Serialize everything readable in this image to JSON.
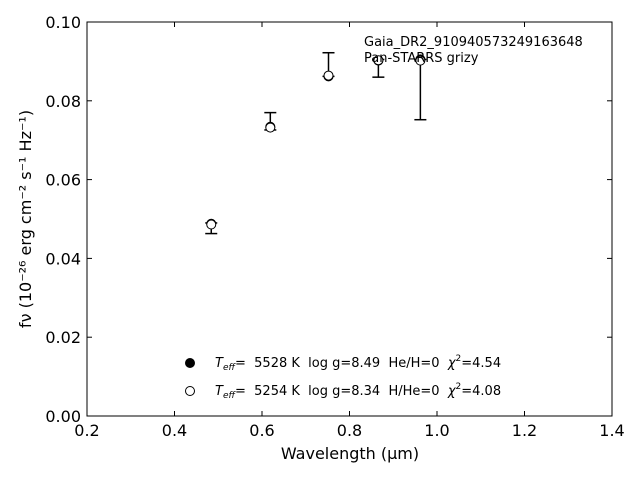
{
  "chart_data": {
    "type": "scatter",
    "xlabel": "Wavelength (μm)",
    "ylabel": "fν (10⁻²⁶ erg cm⁻² s⁻¹ Hz⁻¹)",
    "xlim": [
      0.2,
      1.4
    ],
    "ylim": [
      0.0,
      0.1
    ],
    "x_ticks": [
      "0.2",
      "0.4",
      "0.6",
      "0.8",
      "1.0",
      "1.2",
      "1.4"
    ],
    "y_ticks": [
      "0.00",
      "0.02",
      "0.04",
      "0.06",
      "0.08",
      "0.10"
    ],
    "annotation": {
      "line1": "Gaia_DR2_910940573249163648",
      "line2": "Pan-STARRS grizy"
    },
    "observed": [
      {
        "x": 0.484,
        "y": 0.0484,
        "yerr_low": 0.0021,
        "yerr_high": 0.0006
      },
      {
        "x": 0.619,
        "y": 0.0735,
        "yerr_low": 0.0009,
        "yerr_high": 0.0035
      },
      {
        "x": 0.752,
        "y": 0.0865,
        "yerr_low": 0.0003,
        "yerr_high": 0.0057
      },
      {
        "x": 0.866,
        "y": 0.0905,
        "yerr_low": 0.0045,
        "yerr_high": 0.0
      },
      {
        "x": 0.962,
        "y": 0.0905,
        "yerr_low": 0.0153,
        "yerr_high": 0.0
      }
    ],
    "series": [
      {
        "marker": "filled",
        "values": [
          0.0488,
          0.0734,
          0.0862,
          0.0902,
          0.0905
        ]
      },
      {
        "marker": "open",
        "values": [
          0.0486,
          0.0732,
          0.0864,
          0.0903,
          0.0902
        ]
      }
    ],
    "legend": {
      "placement": "lower-center",
      "entries": [
        {
          "marker": "filled",
          "teff_label": "T",
          "teff_sub": "eff",
          "value": "=  5528 K  log g=8.49  He/H=0  ",
          "chi_label": "χ",
          "chi_sup": "2",
          "chi_value": "=4.54"
        },
        {
          "marker": "open",
          "teff_label": "T",
          "teff_sub": "eff",
          "value": "=  5254 K  log g=8.34  H/He=0  ",
          "chi_label": "χ",
          "chi_sup": "2",
          "chi_value": "=4.08"
        }
      ]
    },
    "colors": {
      "marker": "#000000",
      "axis": "#000000",
      "background": "#ffffff"
    }
  }
}
